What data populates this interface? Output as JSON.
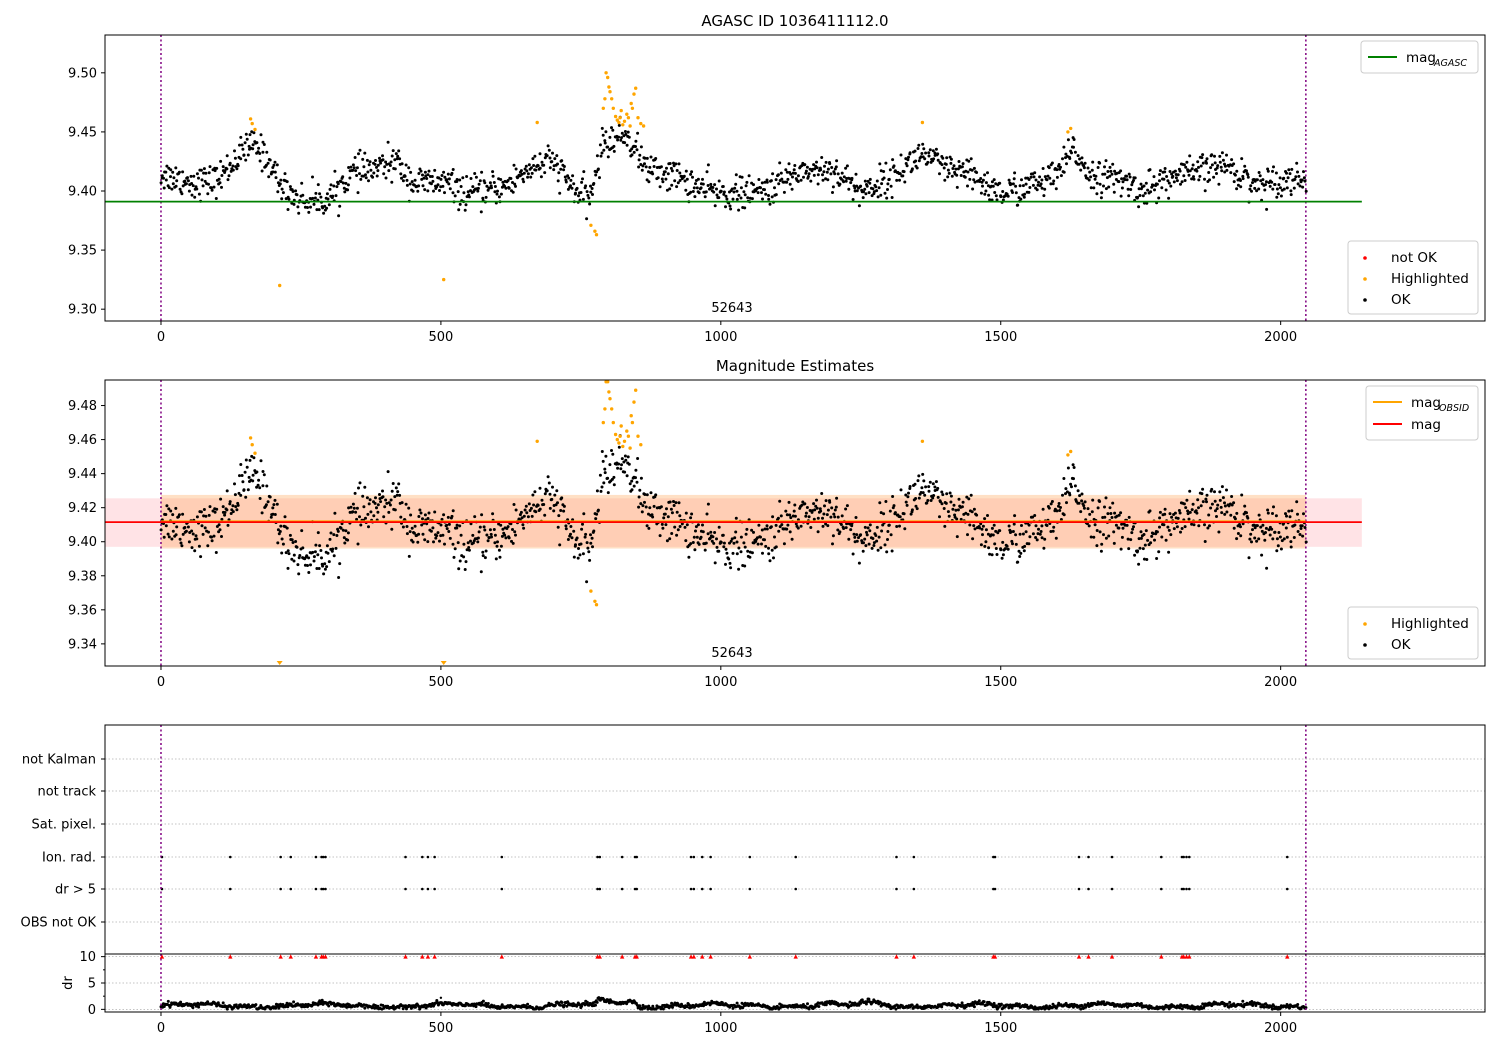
{
  "chart_data": [
    {
      "type": "scatter",
      "title": "AGASC ID 1036411112.0",
      "xlim": [
        -100,
        2365
      ],
      "ylim": [
        9.29,
        9.532
      ],
      "x_ticks": [
        0,
        500,
        1000,
        1500,
        2000
      ],
      "y_ticks": [
        9.3,
        9.35,
        9.4,
        9.45,
        9.5
      ],
      "y_tick_labels": [
        "9.30",
        "9.35",
        "9.40",
        "9.45",
        "9.50"
      ],
      "annotation": "52643",
      "annotation_x": 1020,
      "vlines": [
        0,
        2045
      ],
      "hlines": [
        {
          "name": "mag_AGASC",
          "y": 9.391,
          "x": [
            -100,
            2145
          ],
          "color": "#008000"
        }
      ],
      "legend_upper": {
        "position": "upper-right",
        "items": [
          {
            "main": "mag",
            "sub": "AGASC",
            "color": "#008000"
          }
        ]
      },
      "legend_lower": {
        "position": "lower-right",
        "items": [
          {
            "label": "not OK",
            "color": "#ff0000"
          },
          {
            "label": "Highlighted",
            "color": "#ffa500"
          },
          {
            "label": "OK",
            "color": "#000000"
          }
        ]
      },
      "series_base": {
        "name": "OK",
        "color": "#000000",
        "mean": 9.411,
        "noise": 0.009,
        "x_range": [
          0,
          2045
        ],
        "n": 1500
      },
      "highlighted": [
        [
          160,
          9.461
        ],
        [
          163,
          9.457
        ],
        [
          168,
          9.452
        ],
        [
          212,
          9.32
        ],
        [
          505,
          9.325
        ],
        [
          672,
          9.458
        ],
        [
          768,
          9.371
        ],
        [
          775,
          9.366
        ],
        [
          778,
          9.363
        ],
        [
          790,
          9.47
        ],
        [
          793,
          9.478
        ],
        [
          795,
          9.5
        ],
        [
          798,
          9.496
        ],
        [
          800,
          9.488
        ],
        [
          802,
          9.484
        ],
        [
          805,
          9.478
        ],
        [
          808,
          9.47
        ],
        [
          812,
          9.463
        ],
        [
          815,
          9.46
        ],
        [
          818,
          9.458
        ],
        [
          820,
          9.462
        ],
        [
          822,
          9.468
        ],
        [
          825,
          9.456
        ],
        [
          828,
          9.459
        ],
        [
          832,
          9.465
        ],
        [
          835,
          9.462
        ],
        [
          838,
          9.455
        ],
        [
          840,
          9.474
        ],
        [
          842,
          9.47
        ],
        [
          845,
          9.482
        ],
        [
          848,
          9.487
        ],
        [
          852,
          9.462
        ],
        [
          857,
          9.457
        ],
        [
          862,
          9.455
        ],
        [
          1360,
          9.458
        ],
        [
          1620,
          9.45
        ],
        [
          1625,
          9.453
        ]
      ],
      "highlighted_color": "#ffa500"
    },
    {
      "type": "scatter",
      "title": "Magnitude Estimates",
      "xlim": [
        -100,
        2365
      ],
      "ylim": [
        9.327,
        9.495
      ],
      "x_ticks": [
        0,
        500,
        1000,
        1500,
        2000
      ],
      "y_ticks": [
        9.34,
        9.36,
        9.38,
        9.4,
        9.42,
        9.44,
        9.46,
        9.48
      ],
      "y_tick_labels": [
        "9.34",
        "9.36",
        "9.38",
        "9.40",
        "9.42",
        "9.44",
        "9.46",
        "9.48"
      ],
      "annotation": "52643",
      "annotation_x": 1020,
      "vlines": [
        0,
        2045
      ],
      "bands": [
        {
          "name": "mag band",
          "x": [
            -100,
            2145
          ],
          "y": [
            9.397,
            9.4255
          ],
          "color": "#ff9aa6",
          "opacity": 0.28
        },
        {
          "name": "mag_OBSID band",
          "x": [
            0,
            2045
          ],
          "y": [
            9.396,
            9.4275
          ],
          "color": "#ffa55a",
          "opacity": 0.35
        }
      ],
      "hlines": [
        {
          "name": "mag_OBSID",
          "y": 9.412,
          "x": [
            0,
            2045
          ],
          "color": "#ffa500"
        },
        {
          "name": "mag",
          "y": 9.4115,
          "x": [
            -100,
            2145
          ],
          "color": "#ff0000"
        }
      ],
      "legend_upper": {
        "position": "upper-right",
        "items": [
          {
            "main": "mag",
            "sub": "OBSID",
            "color": "#ffa500"
          },
          {
            "main": "mag",
            "sub": "",
            "color": "#ff0000"
          }
        ]
      },
      "legend_lower": {
        "position": "lower-right",
        "items": [
          {
            "label": "Highlighted",
            "color": "#ffa500"
          },
          {
            "label": "OK",
            "color": "#000000"
          }
        ]
      },
      "series_base": {
        "name": "OK",
        "color": "#000000",
        "mean": 9.411,
        "noise": 0.009,
        "x_range": [
          0,
          2045
        ],
        "n": 1500
      },
      "highlighted": [
        [
          160,
          9.461
        ],
        [
          163,
          9.457
        ],
        [
          168,
          9.452
        ],
        [
          672,
          9.459
        ],
        [
          768,
          9.371
        ],
        [
          775,
          9.365
        ],
        [
          778,
          9.363
        ],
        [
          790,
          9.47
        ],
        [
          793,
          9.478
        ],
        [
          795,
          9.494
        ],
        [
          798,
          9.494
        ],
        [
          800,
          9.488
        ],
        [
          802,
          9.484
        ],
        [
          805,
          9.478
        ],
        [
          808,
          9.47
        ],
        [
          812,
          9.463
        ],
        [
          815,
          9.46
        ],
        [
          818,
          9.458
        ],
        [
          820,
          9.462
        ],
        [
          822,
          9.468
        ],
        [
          825,
          9.456
        ],
        [
          828,
          9.459
        ],
        [
          832,
          9.465
        ],
        [
          835,
          9.462
        ],
        [
          838,
          9.455
        ],
        [
          840,
          9.474
        ],
        [
          842,
          9.47
        ],
        [
          845,
          9.482
        ],
        [
          848,
          9.489
        ],
        [
          852,
          9.462
        ],
        [
          857,
          9.457
        ],
        [
          1360,
          9.459
        ],
        [
          1620,
          9.451
        ],
        [
          1625,
          9.453
        ]
      ],
      "highlighted_clipped_x": [
        212,
        505
      ],
      "highlighted_color": "#ffa500"
    },
    {
      "type": "scatter",
      "title": "",
      "xlim": [
        -100,
        2365
      ],
      "categories": [
        "not Kalman",
        "not track",
        "Sat. pixel.",
        "Ion. rad.",
        "dr > 5",
        "OBS not OK"
      ],
      "flag_rows": {
        "Ion. rad.": [
          0,
          122,
          212,
          230,
          275,
          285,
          288,
          292,
          435,
          465,
          475,
          487,
          607,
          778,
          782,
          822,
          845,
          848,
          945,
          950,
          965,
          980,
          1050,
          1132,
          1312,
          1343,
          1485,
          1488,
          1638,
          1655,
          1697,
          1785,
          1822,
          1825,
          1830,
          1835,
          2010
        ],
        "dr > 5": [
          0,
          122,
          212,
          230,
          275,
          285,
          288,
          292,
          435,
          465,
          475,
          487,
          607,
          778,
          782,
          822,
          845,
          848,
          945,
          950,
          965,
          980,
          1050,
          1132,
          1312,
          1343,
          1485,
          1488,
          1638,
          1655,
          1697,
          1785,
          1822,
          1825,
          1830,
          1835,
          2010
        ]
      }
    },
    {
      "type": "line",
      "ylabel": "dr",
      "xlim": [
        -100,
        2365
      ],
      "ylim": [
        -0.5,
        10.5
      ],
      "x_ticks": [
        0,
        500,
        1000,
        1500,
        2000
      ],
      "y_ticks": [
        0,
        5,
        10
      ],
      "clipped_markers_y": 10,
      "clipped_markers_color": "#ff0000",
      "clipped_markers_x": [
        0,
        122,
        212,
        230,
        275,
        285,
        288,
        292,
        435,
        465,
        475,
        487,
        607,
        778,
        782,
        822,
        845,
        848,
        945,
        950,
        965,
        980,
        1050,
        1132,
        1312,
        1343,
        1485,
        1488,
        1638,
        1655,
        1697,
        1785,
        1822,
        1825,
        1830,
        1835,
        2010
      ],
      "series": {
        "name": "dr",
        "color": "#000000",
        "mean": 0.7,
        "x_range": [
          0,
          2045
        ]
      }
    }
  ]
}
